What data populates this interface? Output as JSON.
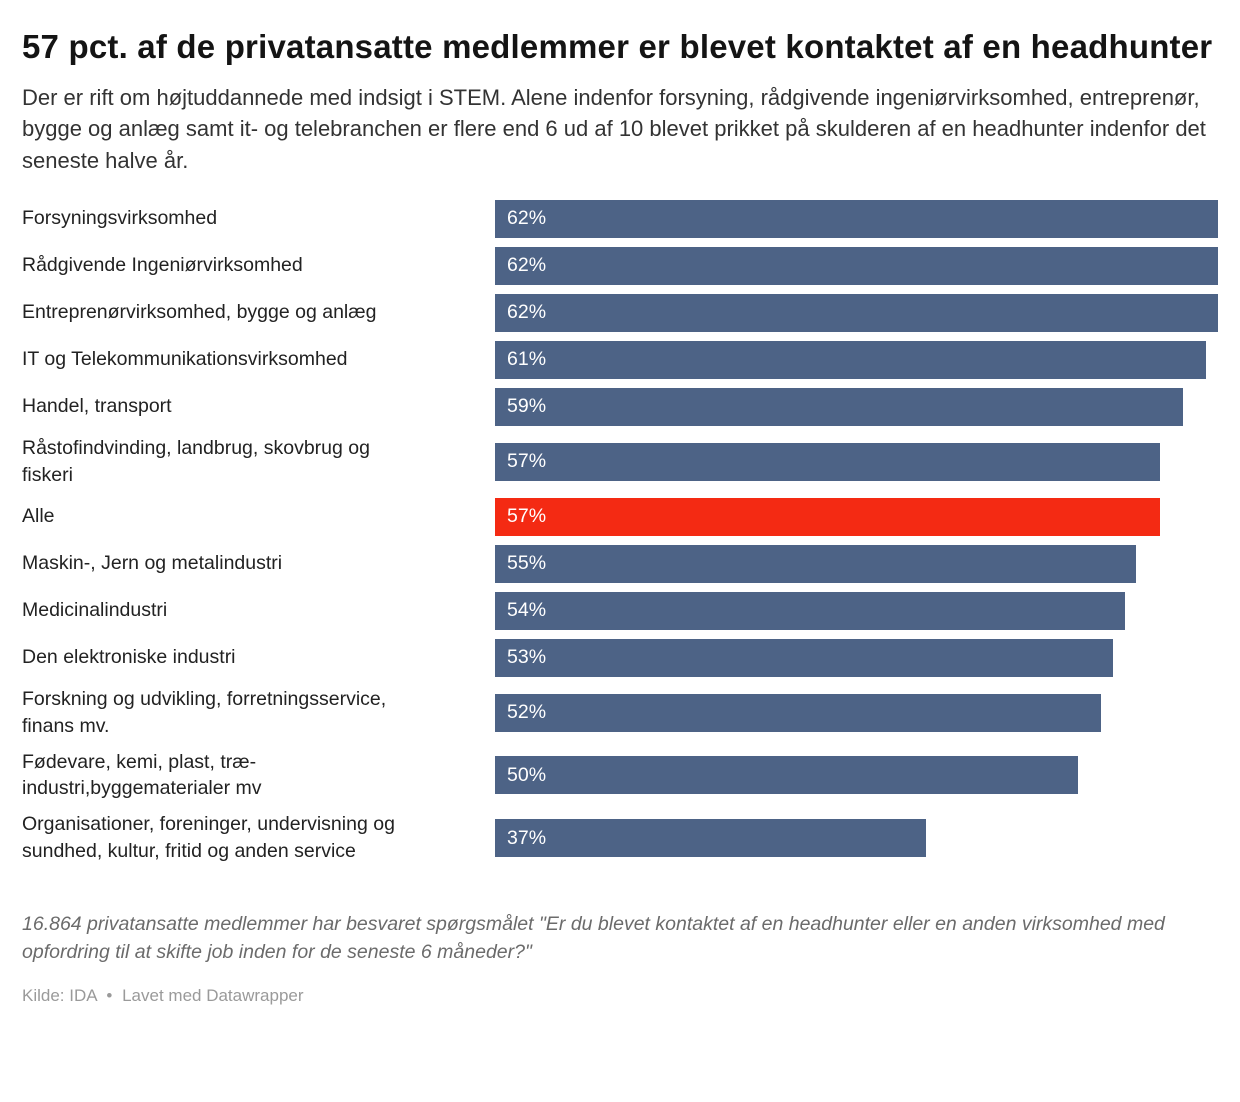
{
  "header": {
    "title": "57 pct. af de privatansatte medlemmer er blevet kontaktet af en headhunter",
    "subtitle": "Der er rift om højtuddannede med indsigt i STEM. Alene indenfor forsyning, rådgivende ingeniørvirksomhed, entreprenør, bygge og anlæg samt it- og telebranchen er flere end 6 ud af 10 blevet prikket på skulderen af en headhunter indenfor det seneste halve år."
  },
  "colors": {
    "bar_default": "#4d6386",
    "bar_highlight": "#f42a13",
    "bar_value_text": "#ffffff"
  },
  "chart_data": {
    "type": "bar",
    "orientation": "horizontal",
    "title": "57 pct. af de privatansatte medlemmer er blevet kontaktet af en headhunter",
    "xlabel": "",
    "ylabel": "",
    "xlim": [
      0,
      62
    ],
    "grid": false,
    "legend": false,
    "value_suffix": "%",
    "highlight_index": 6,
    "highlight_category": "Alle",
    "categories": [
      "Forsyningsvirksomhed",
      "Rådgivende Ingeniørvirksomhed",
      "Entreprenørvirksomhed, bygge og anlæg",
      "IT og Telekommunikationsvirksomhed",
      "Handel, transport",
      "Råstofindvinding, landbrug, skovbrug og\nfiskeri",
      "Alle",
      "Maskin-, Jern og metalindustri",
      "Medicinalindustri",
      "Den elektroniske industri",
      "Forskning og udvikling, forretningsservice,\nfinans mv.",
      "Fødevare, kemi, plast, træ-\nindustri,byggematerialer mv",
      "Organisationer, foreninger, undervisning og\nsundhed, kultur, fritid og anden service"
    ],
    "values": [
      62,
      62,
      62,
      61,
      59,
      57,
      57,
      55,
      54,
      53,
      52,
      50,
      37
    ],
    "value_labels": [
      "62%",
      "62%",
      "62%",
      "61%",
      "59%",
      "57%",
      "57%",
      "55%",
      "54%",
      "53%",
      "52%",
      "50%",
      "37%"
    ]
  },
  "footer": {
    "note": "16.864 privatansatte medlemmer har besvaret spørgsmålet \"Er du blevet kontaktet af en headhunter eller en anden virksomhed med opfordring til at skifte job inden for de seneste 6 måneder?\"",
    "source_prefix": "Kilde:",
    "source": "IDA",
    "separator": "•",
    "attribution": "Lavet med Datawrapper"
  }
}
